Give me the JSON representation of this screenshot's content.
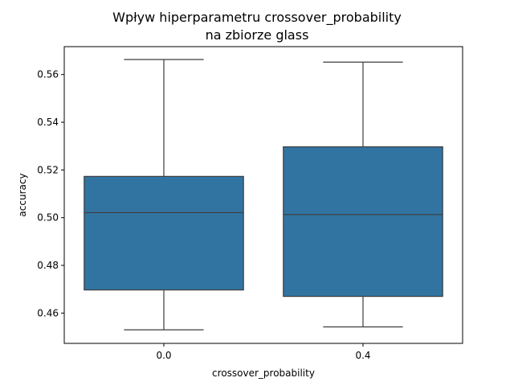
{
  "chart_data": {
    "type": "box",
    "title": "Wpływ hiperparametru crossover_probability",
    "subtitle": "na zbiorze glass",
    "xlabel": "crossover_probability",
    "ylabel": "accuracy",
    "categories": [
      "0.0",
      "0.4"
    ],
    "boxes": [
      {
        "category": "0.0",
        "min": 0.453,
        "q1": 0.4697,
        "median": 0.5021,
        "q3": 0.5173,
        "max": 0.5663
      },
      {
        "category": "0.4",
        "min": 0.4542,
        "q1": 0.467,
        "median": 0.5013,
        "q3": 0.5297,
        "max": 0.5652
      }
    ],
    "ylim": [
      0.4473,
      0.5717
    ],
    "yticks": [
      "0.46",
      "0.48",
      "0.50",
      "0.52",
      "0.54",
      "0.56"
    ],
    "ytick_values": [
      0.46,
      0.48,
      0.5,
      0.52,
      0.54,
      0.56
    ],
    "grid": false,
    "legend": "none",
    "box_color": "#3274a1",
    "line_color": "#3d3d3d"
  }
}
